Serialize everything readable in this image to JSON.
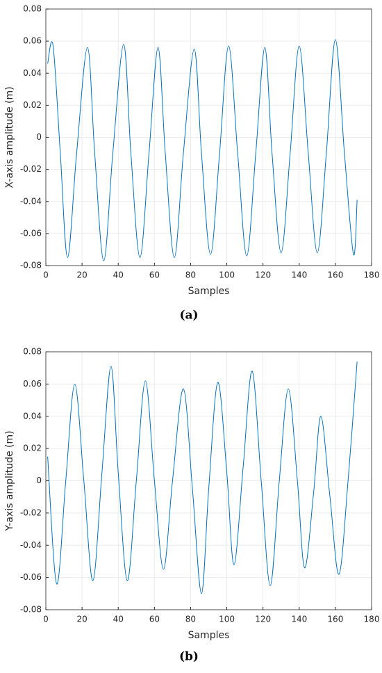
{
  "chart_data": [
    {
      "type": "line",
      "caption": "(a)",
      "xlabel": "Samples",
      "ylabel": "X-axis amplitude (m)",
      "x": [
        1,
        4,
        8,
        12,
        17,
        23,
        27,
        32,
        37,
        43,
        47,
        52,
        57,
        62,
        66,
        71,
        76,
        82,
        86,
        91,
        96,
        101,
        106,
        111,
        116,
        121,
        125,
        130,
        135,
        140,
        145,
        150,
        155,
        160,
        165,
        170,
        172
      ],
      "series": [
        {
          "color": "#0072bd",
          "values": [
            0.046,
            0.057,
            -0.01,
            -0.075,
            -0.01,
            0.056,
            -0.01,
            -0.077,
            -0.01,
            0.058,
            -0.01,
            -0.075,
            -0.01,
            0.056,
            -0.01,
            -0.075,
            -0.01,
            0.055,
            -0.01,
            -0.073,
            -0.01,
            0.057,
            -0.01,
            -0.074,
            -0.01,
            0.056,
            -0.01,
            -0.072,
            -0.01,
            0.057,
            -0.01,
            -0.072,
            -0.01,
            0.061,
            -0.01,
            -0.073,
            -0.039
          ]
        }
      ],
      "xlim": [
        0,
        180
      ],
      "xticks": [
        0,
        20,
        40,
        60,
        80,
        100,
        120,
        140,
        160,
        180
      ],
      "ylim": [
        -0.08,
        0.08
      ],
      "yticks": [
        -0.08,
        -0.06,
        -0.04,
        -0.02,
        0,
        0.02,
        0.04,
        0.06,
        0.08
      ],
      "grid": true
    },
    {
      "type": "line",
      "caption": "(b)",
      "xlabel": "Samples",
      "ylabel": "Y-axis amplitude (m)",
      "x": [
        1,
        6,
        11,
        16,
        21,
        26,
        31,
        36,
        40,
        45,
        50,
        55,
        60,
        65,
        70,
        76,
        81,
        86,
        90,
        95,
        100,
        104,
        109,
        114,
        119,
        124,
        129,
        134,
        139,
        143,
        148,
        152,
        157,
        162,
        167,
        172
      ],
      "series": [
        {
          "color": "#0072bd",
          "values": [
            0.015,
            -0.064,
            0,
            0.06,
            0,
            -0.062,
            0.005,
            0.071,
            0.005,
            -0.062,
            0,
            0.062,
            0,
            -0.055,
            0,
            0.057,
            -0.005,
            -0.07,
            -0.005,
            0.061,
            0.005,
            -0.052,
            0.008,
            0.068,
            0,
            -0.065,
            0,
            0.057,
            0,
            -0.054,
            -0.007,
            0.04,
            -0.01,
            -0.058,
            0,
            0.074
          ]
        }
      ],
      "xlim": [
        0,
        180
      ],
      "xticks": [
        0,
        20,
        40,
        60,
        80,
        100,
        120,
        140,
        160,
        180
      ],
      "ylim": [
        -0.08,
        0.08
      ],
      "yticks": [
        -0.08,
        -0.06,
        -0.04,
        -0.02,
        0,
        0.02,
        0.04,
        0.06,
        0.08
      ],
      "grid": true
    }
  ]
}
